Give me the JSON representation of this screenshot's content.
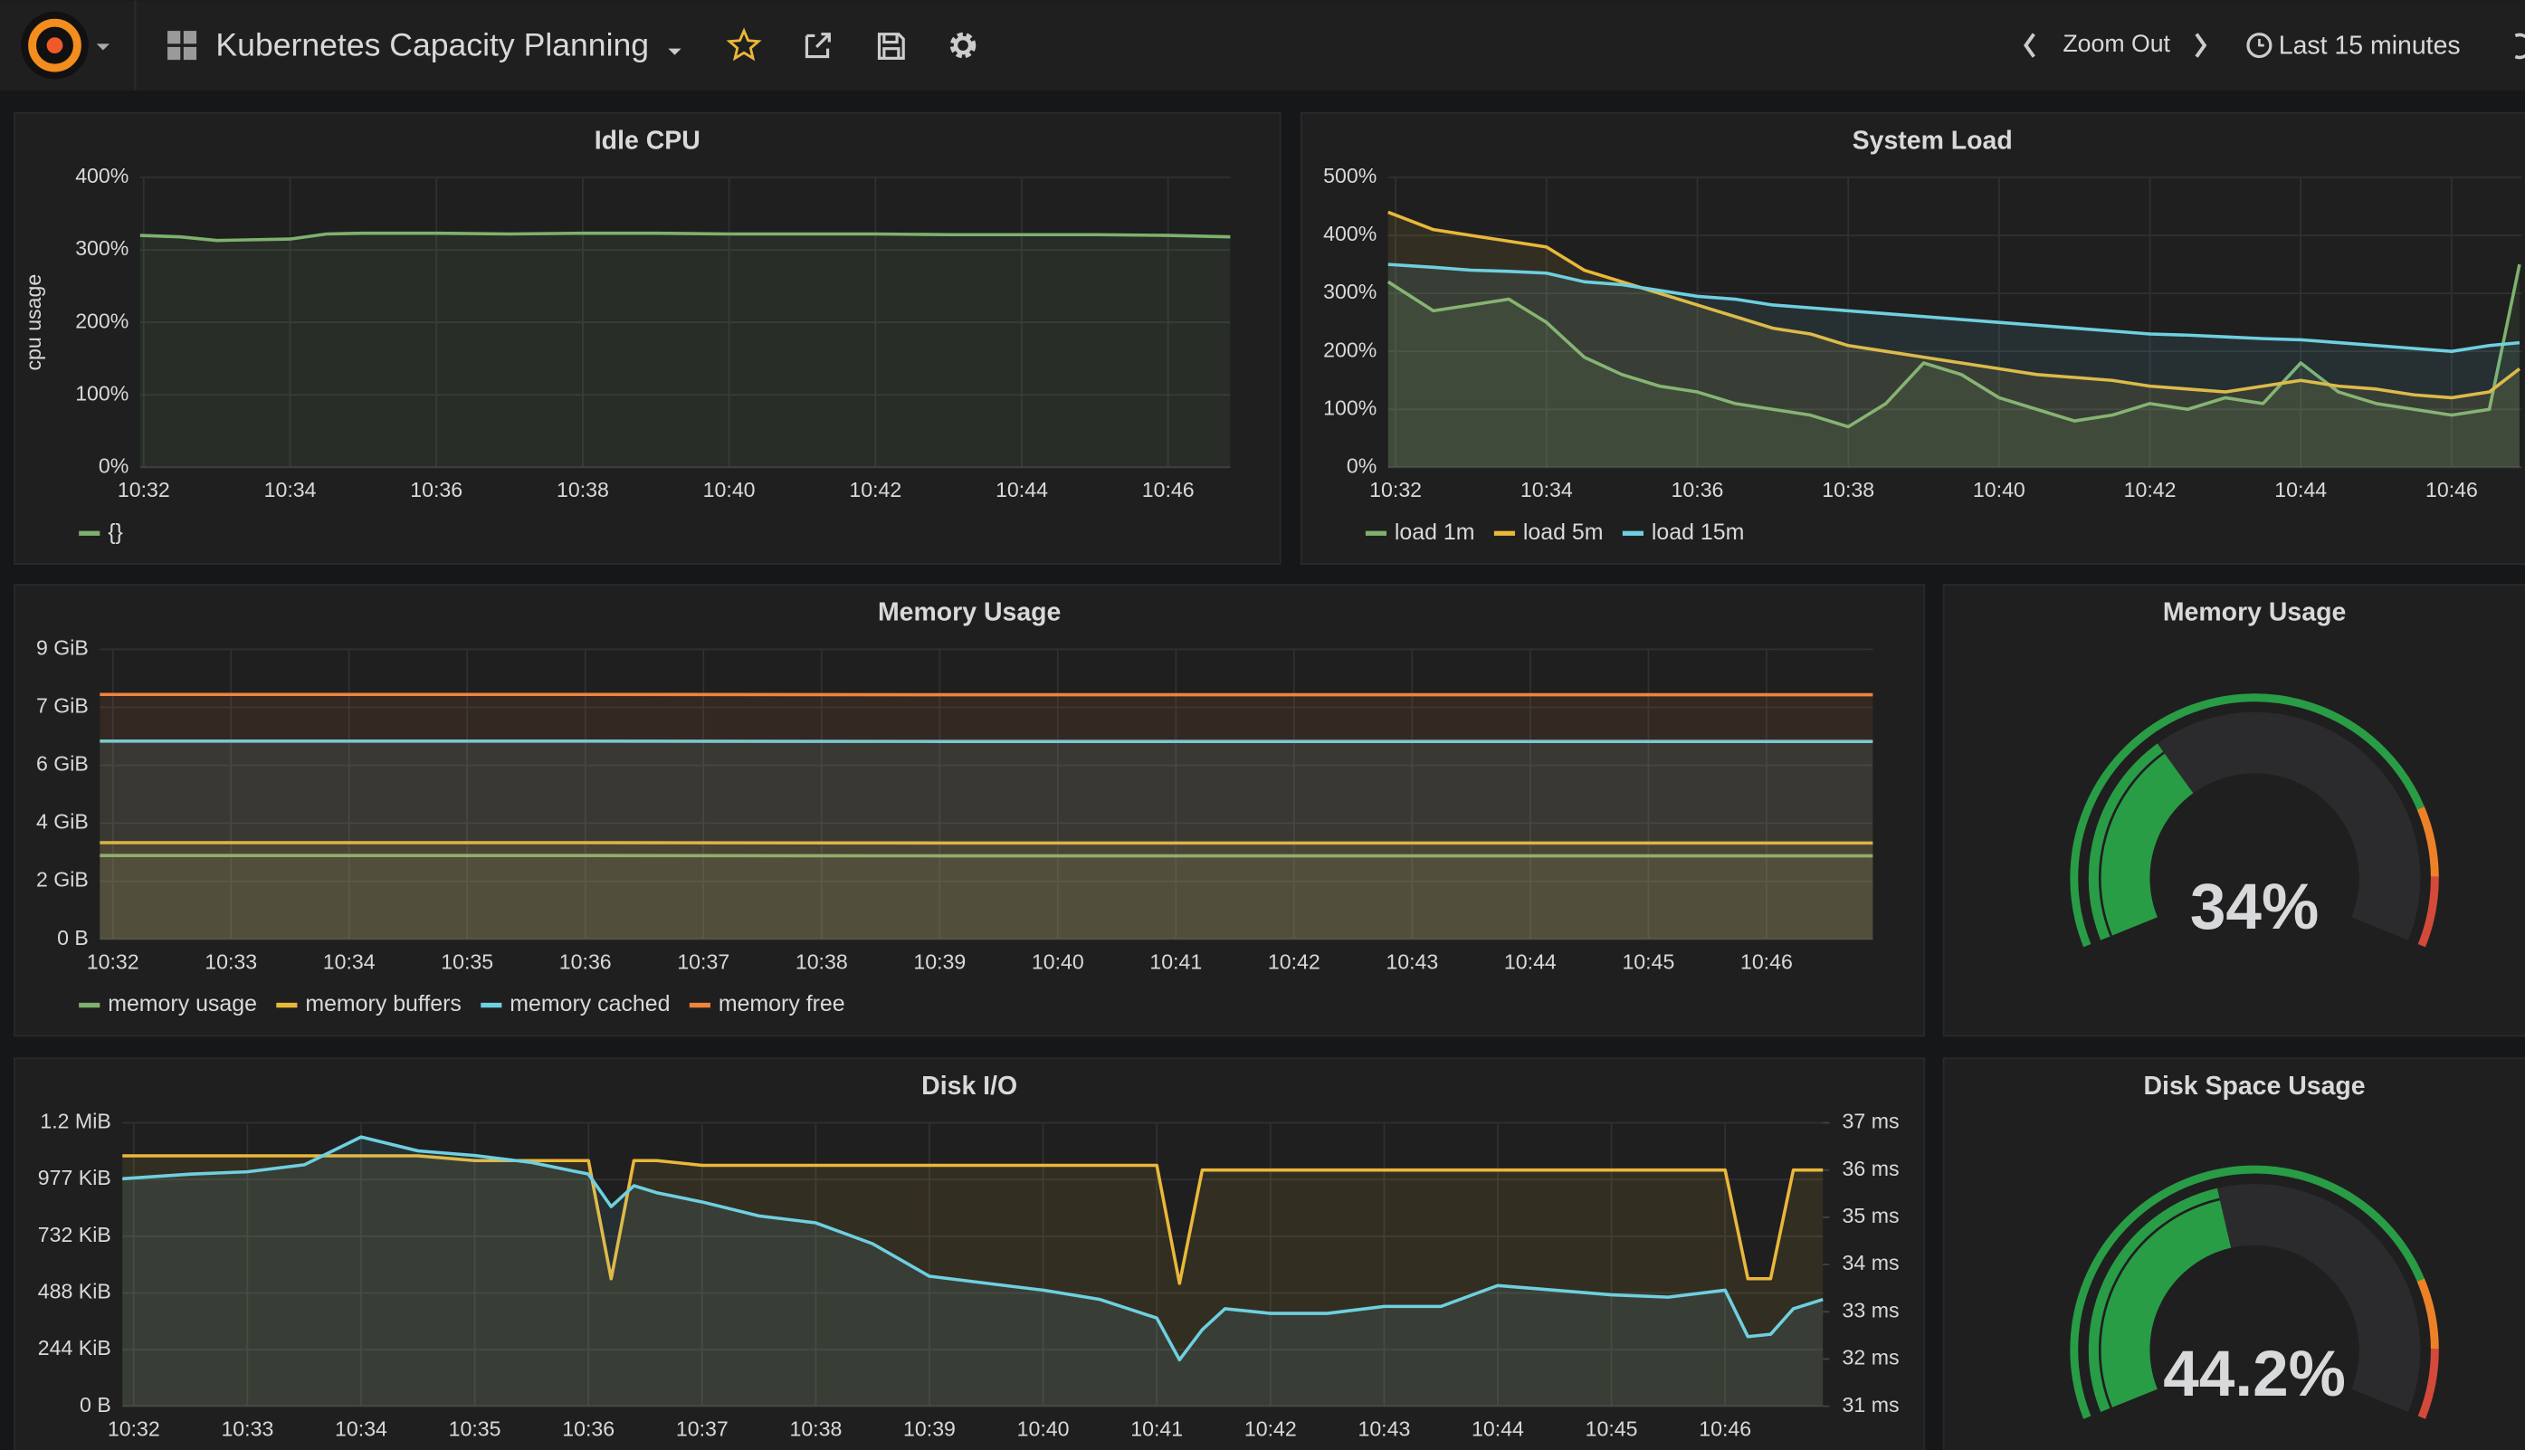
{
  "header": {
    "title": "Kubernetes Capacity Planning",
    "zoom": "Zoom Out",
    "time_range": "Last 15 minutes"
  },
  "chart_data": [
    {
      "type": "line",
      "title": "Idle CPU",
      "ylabel": "cpu usage",
      "grid": true,
      "legend": "bottom",
      "xlim": [
        31.95,
        46.85
      ],
      "ylim": [
        0,
        400
      ],
      "xticks": [
        {
          "value": 32,
          "label": "10:32"
        },
        {
          "value": 34,
          "label": "10:34"
        },
        {
          "value": 36,
          "label": "10:36"
        },
        {
          "value": 38,
          "label": "10:38"
        },
        {
          "value": 40,
          "label": "10:40"
        },
        {
          "value": 42,
          "label": "10:42"
        },
        {
          "value": 44,
          "label": "10:44"
        },
        {
          "value": 46,
          "label": "10:46"
        }
      ],
      "yticks": [
        {
          "value": 0,
          "label": "0%"
        },
        {
          "value": 100,
          "label": "100%"
        },
        {
          "value": 200,
          "label": "200%"
        },
        {
          "value": 300,
          "label": "300%"
        },
        {
          "value": 400,
          "label": "400%"
        }
      ],
      "x": [
        31.95,
        32.5,
        33,
        33.5,
        34,
        34.5,
        35,
        36,
        37,
        38,
        39,
        40,
        41,
        42,
        43,
        44,
        45,
        46,
        46.85
      ],
      "series": [
        {
          "name": "{}",
          "color": "#7eb26d",
          "values": [
            320,
            318,
            313,
            314,
            315,
            322,
            323,
            323,
            322,
            323,
            323,
            322,
            322,
            322,
            321,
            321,
            321,
            320,
            318
          ]
        }
      ]
    },
    {
      "type": "line",
      "title": "System Load",
      "grid": true,
      "legend": "bottom",
      "xlim": [
        31.9,
        46.93
      ],
      "ylim": [
        0,
        500
      ],
      "xticks": [
        {
          "value": 32,
          "label": "10:32"
        },
        {
          "value": 34,
          "label": "10:34"
        },
        {
          "value": 36,
          "label": "10:36"
        },
        {
          "value": 38,
          "label": "10:38"
        },
        {
          "value": 40,
          "label": "10:40"
        },
        {
          "value": 42,
          "label": "10:42"
        },
        {
          "value": 44,
          "label": "10:44"
        },
        {
          "value": 46,
          "label": "10:46"
        }
      ],
      "yticks": [
        {
          "value": 0,
          "label": "0%"
        },
        {
          "value": 100,
          "label": "100%"
        },
        {
          "value": 200,
          "label": "200%"
        },
        {
          "value": 300,
          "label": "300%"
        },
        {
          "value": 400,
          "label": "400%"
        },
        {
          "value": 500,
          "label": "500%"
        }
      ],
      "x": [
        31.9,
        32.5,
        33,
        33.5,
        34,
        34.5,
        35,
        35.5,
        36,
        36.5,
        37,
        37.5,
        38,
        38.5,
        39,
        39.5,
        40,
        40.5,
        41,
        41.5,
        42,
        42.5,
        43,
        43.5,
        44,
        44.5,
        45,
        45.5,
        46,
        46.5,
        46.9
      ],
      "series": [
        {
          "name": "load 1m",
          "color": "#7eb26d",
          "values": [
            320,
            270,
            280,
            290,
            250,
            190,
            160,
            140,
            130,
            110,
            100,
            90,
            70,
            110,
            180,
            160,
            120,
            100,
            80,
            90,
            110,
            100,
            120,
            110,
            180,
            130,
            110,
            100,
            90,
            100,
            350
          ]
        },
        {
          "name": "load 5m",
          "color": "#eab839",
          "values": [
            440,
            410,
            400,
            390,
            380,
            340,
            320,
            300,
            280,
            260,
            240,
            230,
            210,
            200,
            190,
            180,
            170,
            160,
            155,
            150,
            140,
            135,
            130,
            140,
            150,
            140,
            135,
            125,
            120,
            130,
            170
          ]
        },
        {
          "name": "load 15m",
          "color": "#6ed0e0",
          "values": [
            350,
            345,
            340,
            338,
            335,
            320,
            315,
            305,
            295,
            290,
            280,
            275,
            270,
            265,
            260,
            255,
            250,
            245,
            240,
            235,
            230,
            228,
            225,
            222,
            220,
            215,
            210,
            205,
            200,
            210,
            215
          ]
        }
      ]
    },
    {
      "type": "line",
      "title": "Memory Usage",
      "grid": true,
      "legend": "bottom",
      "xlim": [
        31.89,
        46.9
      ],
      "ylim": [
        0,
        9.25
      ],
      "xticks": [
        {
          "value": 32,
          "label": "10:32"
        },
        {
          "value": 33,
          "label": "10:33"
        },
        {
          "value": 34,
          "label": "10:34"
        },
        {
          "value": 35,
          "label": "10:35"
        },
        {
          "value": 36,
          "label": "10:36"
        },
        {
          "value": 37,
          "label": "10:37"
        },
        {
          "value": 38,
          "label": "10:38"
        },
        {
          "value": 39,
          "label": "10:39"
        },
        {
          "value": 40,
          "label": "10:40"
        },
        {
          "value": 41,
          "label": "10:41"
        },
        {
          "value": 42,
          "label": "10:42"
        },
        {
          "value": 43,
          "label": "10:43"
        },
        {
          "value": 44,
          "label": "10:44"
        },
        {
          "value": 45,
          "label": "10:45"
        },
        {
          "value": 46,
          "label": "10:46"
        }
      ],
      "yticks": [
        {
          "value": 0,
          "label": "0 B"
        },
        {
          "value": 1.85,
          "label": "2 GiB"
        },
        {
          "value": 3.7,
          "label": "4 GiB"
        },
        {
          "value": 5.55,
          "label": "6 GiB"
        },
        {
          "value": 7.4,
          "label": "7 GiB"
        },
        {
          "value": 9.25,
          "label": "9 GiB"
        }
      ],
      "x": [
        31.89,
        36,
        39,
        46.9
      ],
      "series": [
        {
          "name": "memory usage",
          "color": "#7eb26d",
          "values": [
            2.67,
            2.67,
            2.66,
            2.66
          ]
        },
        {
          "name": "memory buffers",
          "color": "#eab839",
          "values": [
            3.08,
            3.08,
            3.07,
            3.07
          ]
        },
        {
          "name": "memory cached",
          "color": "#6ed0e0",
          "values": [
            6.32,
            6.32,
            6.31,
            6.31
          ]
        },
        {
          "name": "memory free",
          "color": "#ef843c",
          "values": [
            7.81,
            7.81,
            7.8,
            7.8
          ]
        }
      ]
    },
    {
      "type": "gauge",
      "title": "Memory Usage",
      "values": [
        34
      ],
      "value_labels": [
        "34%"
      ],
      "ylim": [
        0,
        100
      ],
      "thresholds": [
        80,
        90
      ],
      "colors": [
        "#299c46",
        "#ed8128",
        "#d44a3a"
      ]
    },
    {
      "type": "line",
      "title": "Disk I/O",
      "grid": true,
      "xlim": [
        31.9,
        46.86
      ],
      "ylim": [
        0,
        1221
      ],
      "y2lim": [
        31,
        37
      ],
      "xticks": [
        {
          "value": 32,
          "label": "10:32"
        },
        {
          "value": 33,
          "label": "10:33"
        },
        {
          "value": 34,
          "label": "10:34"
        },
        {
          "value": 35,
          "label": "10:35"
        },
        {
          "value": 36,
          "label": "10:36"
        },
        {
          "value": 37,
          "label": "10:37"
        },
        {
          "value": 38,
          "label": "10:38"
        },
        {
          "value": 39,
          "label": "10:39"
        },
        {
          "value": 40,
          "label": "10:40"
        },
        {
          "value": 41,
          "label": "10:41"
        },
        {
          "value": 42,
          "label": "10:42"
        },
        {
          "value": 43,
          "label": "10:43"
        },
        {
          "value": 44,
          "label": "10:44"
        },
        {
          "value": 45,
          "label": "10:45"
        },
        {
          "value": 46,
          "label": "10:46"
        }
      ],
      "yticks": [
        {
          "value": 0,
          "label": "0 B"
        },
        {
          "value": 244,
          "label": "244 KiB"
        },
        {
          "value": 488,
          "label": "488 KiB"
        },
        {
          "value": 732,
          "label": "732 KiB"
        },
        {
          "value": 977,
          "label": "977 KiB"
        },
        {
          "value": 1221,
          "label": "1.2 MiB"
        }
      ],
      "y2ticks": [
        {
          "value": 31,
          "label": "31 ms"
        },
        {
          "value": 32,
          "label": "32 ms"
        },
        {
          "value": 33,
          "label": "33 ms"
        },
        {
          "value": 34,
          "label": "34 ms"
        },
        {
          "value": 35,
          "label": "35 ms"
        },
        {
          "value": 36,
          "label": "36 ms"
        },
        {
          "value": 37,
          "label": "37 ms"
        }
      ],
      "x": [
        31.9,
        32.5,
        33,
        33.5,
        34,
        34.5,
        35,
        35.5,
        36,
        36.2,
        36.4,
        36.6,
        37,
        37.5,
        38,
        38.5,
        39,
        39.5,
        40,
        40.5,
        41,
        41.2,
        41.4,
        41.6,
        42,
        42.5,
        43,
        43.5,
        44,
        44.5,
        45,
        45.5,
        46,
        46.2,
        46.4,
        46.6,
        46.86
      ],
      "series": [
        {
          "color": "#eab839",
          "axis": "y2",
          "values": [
            36.3,
            36.3,
            36.3,
            36.3,
            36.3,
            36.3,
            36.2,
            36.2,
            36.2,
            33.7,
            36.2,
            36.2,
            36.1,
            36.1,
            36.1,
            36.1,
            36.1,
            36.1,
            36.1,
            36.1,
            36.1,
            33.6,
            36.0,
            36.0,
            36.0,
            36.0,
            36.0,
            36.0,
            36.0,
            36.0,
            36.0,
            36.0,
            36.0,
            33.7,
            33.7,
            36.0,
            36.0
          ]
        },
        {
          "color": "#6ed0e0",
          "values": [
            980,
            1000,
            1010,
            1040,
            1160,
            1100,
            1080,
            1050,
            1000,
            860,
            950,
            920,
            880,
            820,
            790,
            700,
            560,
            530,
            500,
            460,
            380,
            200,
            330,
            420,
            400,
            400,
            430,
            430,
            520,
            500,
            480,
            470,
            500,
            300,
            310,
            420,
            460
          ]
        }
      ]
    },
    {
      "type": "gauge",
      "title": "Disk Space Usage",
      "values": [
        44.2
      ],
      "value_labels": [
        "44.2%"
      ],
      "ylim": [
        0,
        100
      ],
      "thresholds": [
        80,
        90
      ],
      "colors": [
        "#299c46",
        "#ed8128",
        "#d44a3a"
      ]
    }
  ]
}
